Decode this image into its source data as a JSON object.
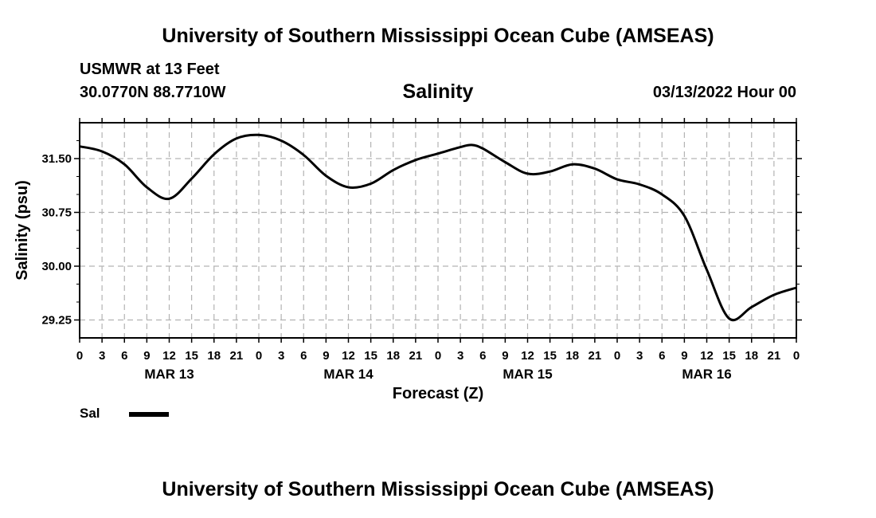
{
  "header": {
    "title_top": "University of Southern Mississippi Ocean Cube (AMSEAS)",
    "station": "USMWR at 13 Feet",
    "coords": "30.0770N  88.7710W",
    "variable": "Salinity",
    "datetime": "03/13/2022 Hour 00",
    "title_bottom": "University of Southern Mississippi Ocean Cube (AMSEAS)"
  },
  "chart_data": {
    "type": "line",
    "title": "Salinity",
    "xlabel": "Forecast (Z)",
    "ylabel": "Salinity (psu)",
    "ylim": [
      29.0,
      32.0
    ],
    "xlim": [
      0,
      96
    ],
    "yticks": [
      29.25,
      30.0,
      30.75,
      31.5
    ],
    "ytick_labels": [
      "29.25",
      "30.00",
      "30.75",
      "31.50"
    ],
    "xtick_step_hours": 3,
    "xtick_labels": [
      "0",
      "3",
      "6",
      "9",
      "12",
      "15",
      "18",
      "21",
      "0",
      "3",
      "6",
      "9",
      "12",
      "15",
      "18",
      "21",
      "0",
      "3",
      "6",
      "9",
      "12",
      "15",
      "18",
      "21",
      "0",
      "3",
      "6",
      "9",
      "12",
      "15",
      "18",
      "21",
      "0"
    ],
    "day_labels": [
      {
        "hour": 12,
        "label": "MAR 13"
      },
      {
        "hour": 36,
        "label": "MAR 14"
      },
      {
        "hour": 60,
        "label": "MAR 15"
      },
      {
        "hour": 84,
        "label": "MAR 16"
      }
    ],
    "grid": true,
    "series": [
      {
        "name": "Sal",
        "color": "#000000",
        "x": [
          0,
          3,
          6,
          9,
          12,
          15,
          18,
          21,
          24,
          27,
          30,
          33,
          36,
          39,
          42,
          45,
          48,
          51,
          52.5,
          54,
          57,
          60,
          63,
          66,
          69,
          72,
          75,
          78,
          81,
          84,
          87,
          90,
          93,
          96
        ],
        "values": [
          31.67,
          31.6,
          31.42,
          31.1,
          30.94,
          31.22,
          31.56,
          31.78,
          31.83,
          31.75,
          31.55,
          31.26,
          31.1,
          31.15,
          31.34,
          31.48,
          31.57,
          31.66,
          31.69,
          31.64,
          31.45,
          31.29,
          31.32,
          31.42,
          31.36,
          31.21,
          31.14,
          31.0,
          30.7,
          29.95,
          29.27,
          29.43,
          29.6,
          29.7
        ]
      }
    ],
    "legend": {
      "label": "Sal",
      "position": "bottom-left"
    }
  }
}
